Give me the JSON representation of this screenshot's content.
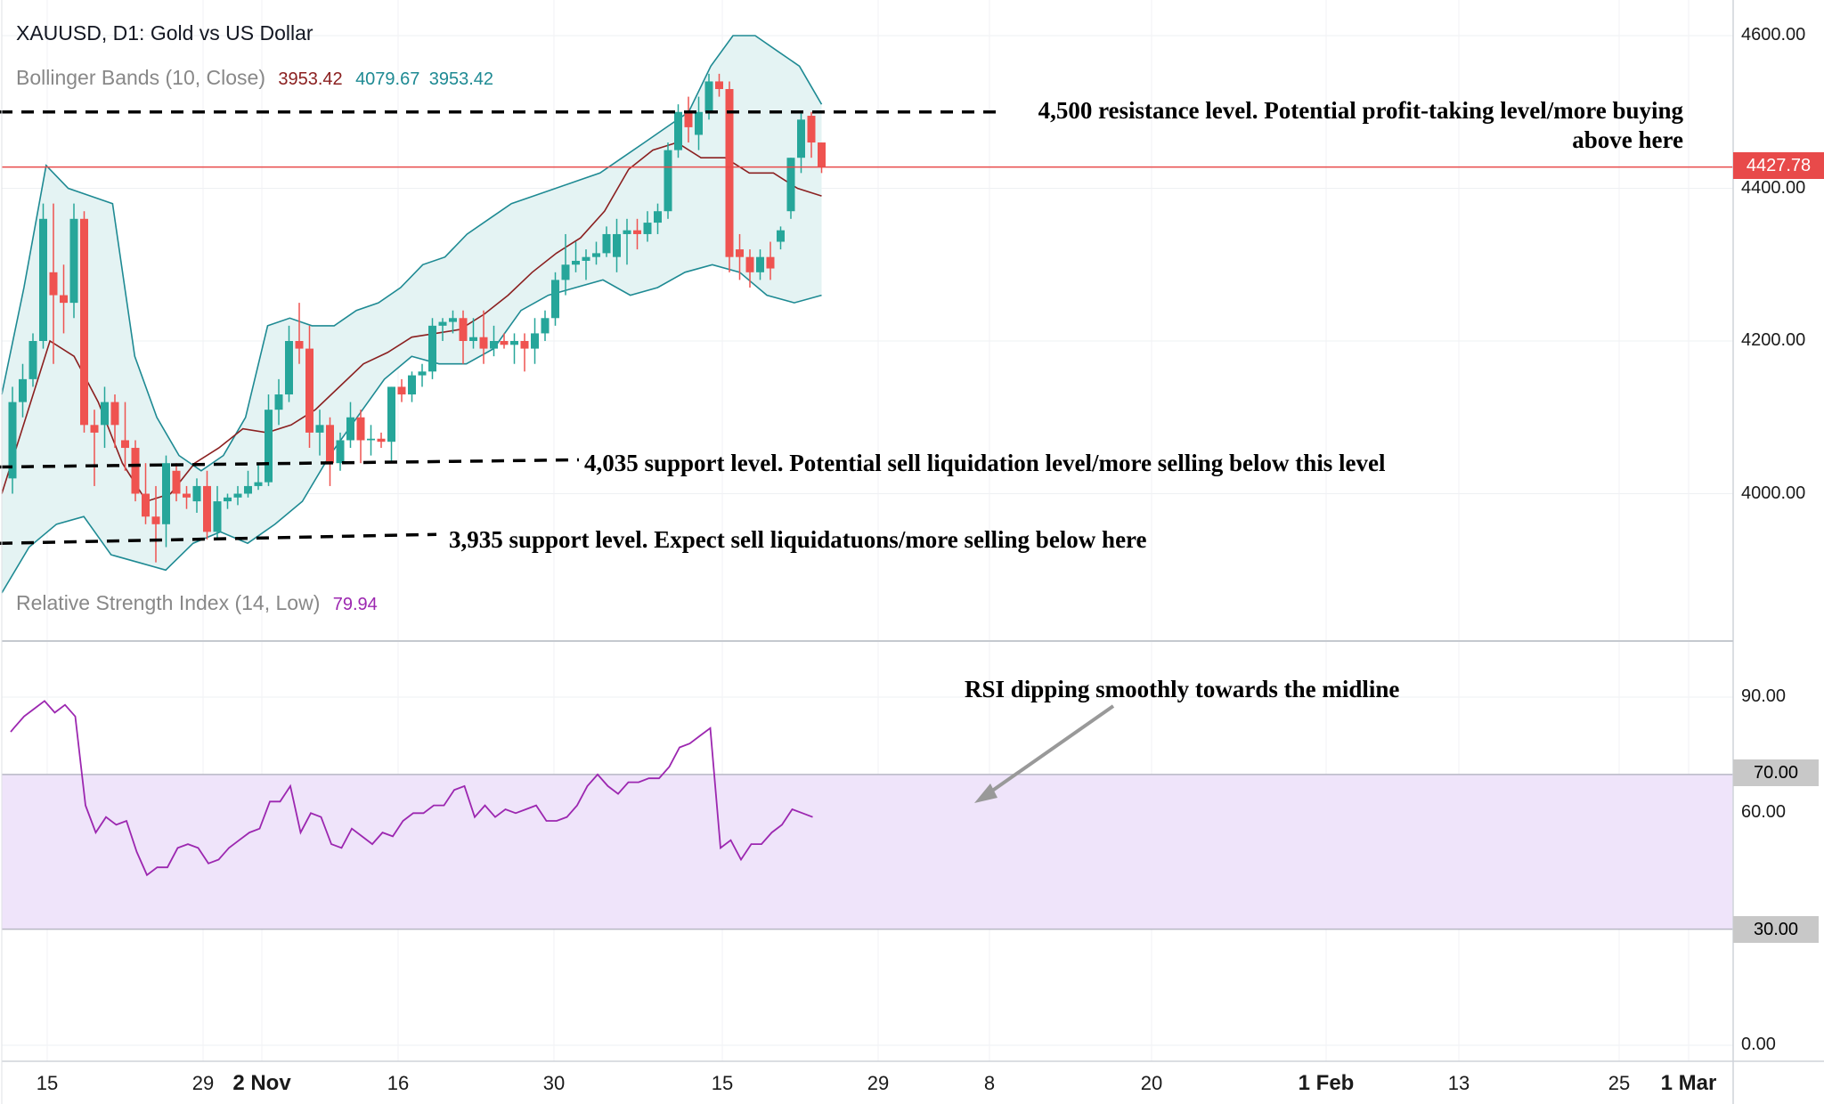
{
  "header": {
    "title": "XAUUSD, D1: Gold vs US Dollar",
    "bollinger_label": "Bollinger Bands (10, Close)",
    "bollinger_values": [
      "3953.42",
      "4079.67",
      "3953.42"
    ],
    "rsi_label": "Relative Strength Index (14, Low)",
    "rsi_value": "79.94"
  },
  "colors": {
    "bull": "#26a69a",
    "bear": "#ef5350",
    "band": "#1e8a93",
    "band_fill": "#e4f3f3",
    "mid": "#8b2020",
    "rsi": "#9c27b0",
    "rsi_zone": "#efe4fa",
    "price_line": "#e84a4a",
    "price_tag": "#e84a4a"
  },
  "current_price": "4427.78",
  "annotations": {
    "resistance": [
      "4,500 resistance level. Potential profit-taking level/more buying",
      "above here"
    ],
    "support_4035": "4,035 support level.  Potential sell liquidation level/more selling below this level",
    "support_3935": "3,935 support level. Expect sell liquidatuons/more selling below here",
    "rsi_note": "RSI dipping smoothly towards the midline"
  },
  "chart_data": [
    {
      "type": "candlestick",
      "title": "XAUUSD, D1: Gold vs US Dollar",
      "ylim": [
        3820,
        4640
      ],
      "y_ticks": [
        "4600.00",
        "4400.00",
        "4200.00",
        "4000.00"
      ],
      "y_tick_values": [
        4600,
        4400,
        4200,
        4000
      ],
      "x_tick_labels": [
        "15",
        "29",
        "2 Nov",
        "16",
        "30",
        "15",
        "29",
        "8",
        "20",
        "1 Feb",
        "13",
        "25",
        "1 Mar"
      ],
      "x_tick_bold": [
        false,
        false,
        true,
        false,
        false,
        false,
        false,
        false,
        false,
        true,
        false,
        false,
        true
      ],
      "levels": [
        {
          "name": "resistance",
          "value": 4500
        },
        {
          "name": "support",
          "value": 4035
        },
        {
          "name": "support",
          "value": 3935
        }
      ],
      "current_price": 4427.78,
      "candles": [
        {
          "o": 4020,
          "h": 4140,
          "l": 4000,
          "c": 4120
        },
        {
          "o": 4120,
          "h": 4170,
          "l": 4100,
          "c": 4150
        },
        {
          "o": 4150,
          "h": 4210,
          "l": 4140,
          "c": 4200
        },
        {
          "o": 4200,
          "h": 4380,
          "l": 4190,
          "c": 4360
        },
        {
          "o": 4290,
          "h": 4380,
          "l": 4170,
          "c": 4260
        },
        {
          "o": 4260,
          "h": 4300,
          "l": 4210,
          "c": 4250
        },
        {
          "o": 4250,
          "h": 4380,
          "l": 4230,
          "c": 4360
        },
        {
          "o": 4360,
          "h": 4370,
          "l": 4080,
          "c": 4090
        },
        {
          "o": 4090,
          "h": 4110,
          "l": 4010,
          "c": 4080
        },
        {
          "o": 4090,
          "h": 4140,
          "l": 4060,
          "c": 4120
        },
        {
          "o": 4120,
          "h": 4130,
          "l": 4060,
          "c": 4090
        },
        {
          "o": 4070,
          "h": 4120,
          "l": 4030,
          "c": 4060
        },
        {
          "o": 4060,
          "h": 4070,
          "l": 3990,
          "c": 4000
        },
        {
          "o": 4000,
          "h": 4040,
          "l": 3960,
          "c": 3970
        },
        {
          "o": 3970,
          "h": 4010,
          "l": 3910,
          "c": 3960
        },
        {
          "o": 3960,
          "h": 4050,
          "l": 3930,
          "c": 4040
        },
        {
          "o": 4030,
          "h": 4040,
          "l": 3990,
          "c": 4000
        },
        {
          "o": 4000,
          "h": 4010,
          "l": 3980,
          "c": 3995
        },
        {
          "o": 3990,
          "h": 4020,
          "l": 3975,
          "c": 4010
        },
        {
          "o": 4010,
          "h": 4030,
          "l": 3940,
          "c": 3950
        },
        {
          "o": 3950,
          "h": 4010,
          "l": 3940,
          "c": 3990
        },
        {
          "o": 3990,
          "h": 4000,
          "l": 3980,
          "c": 3995
        },
        {
          "o": 3995,
          "h": 4010,
          "l": 3985,
          "c": 4000
        },
        {
          "o": 4000,
          "h": 4030,
          "l": 3995,
          "c": 4010
        },
        {
          "o": 4010,
          "h": 4040,
          "l": 4005,
          "c": 4015
        },
        {
          "o": 4015,
          "h": 4130,
          "l": 4010,
          "c": 4110
        },
        {
          "o": 4110,
          "h": 4150,
          "l": 4090,
          "c": 4130
        },
        {
          "o": 4130,
          "h": 4220,
          "l": 4120,
          "c": 4200
        },
        {
          "o": 4200,
          "h": 4250,
          "l": 4170,
          "c": 4190
        },
        {
          "o": 4190,
          "h": 4220,
          "l": 4060,
          "c": 4080
        },
        {
          "o": 4080,
          "h": 4110,
          "l": 4050,
          "c": 4090
        },
        {
          "o": 4090,
          "h": 4100,
          "l": 4010,
          "c": 4040
        },
        {
          "o": 4040,
          "h": 4080,
          "l": 4030,
          "c": 4070
        },
        {
          "o": 4070,
          "h": 4120,
          "l": 4060,
          "c": 4100
        },
        {
          "o": 4100,
          "h": 4110,
          "l": 4040,
          "c": 4070
        },
        {
          "o": 4070,
          "h": 4090,
          "l": 4050,
          "c": 4072
        },
        {
          "o": 4072,
          "h": 4080,
          "l": 4060,
          "c": 4068
        },
        {
          "o": 4068,
          "h": 4140,
          "l": 4040,
          "c": 4140
        },
        {
          "o": 4140,
          "h": 4150,
          "l": 4120,
          "c": 4130
        },
        {
          "o": 4130,
          "h": 4160,
          "l": 4120,
          "c": 4155
        },
        {
          "o": 4155,
          "h": 4170,
          "l": 4140,
          "c": 4160
        },
        {
          "o": 4160,
          "h": 4230,
          "l": 4150,
          "c": 4220
        },
        {
          "o": 4220,
          "h": 4230,
          "l": 4200,
          "c": 4225
        },
        {
          "o": 4225,
          "h": 4240,
          "l": 4210,
          "c": 4230
        },
        {
          "o": 4230,
          "h": 4240,
          "l": 4170,
          "c": 4200
        },
        {
          "o": 4200,
          "h": 4230,
          "l": 4190,
          "c": 4205
        },
        {
          "o": 4205,
          "h": 4240,
          "l": 4170,
          "c": 4190
        },
        {
          "o": 4190,
          "h": 4220,
          "l": 4180,
          "c": 4200
        },
        {
          "o": 4200,
          "h": 4210,
          "l": 4190,
          "c": 4195
        },
        {
          "o": 4195,
          "h": 4210,
          "l": 4170,
          "c": 4200
        },
        {
          "o": 4200,
          "h": 4210,
          "l": 4160,
          "c": 4190
        },
        {
          "o": 4190,
          "h": 4230,
          "l": 4170,
          "c": 4210
        },
        {
          "o": 4210,
          "h": 4240,
          "l": 4200,
          "c": 4230
        },
        {
          "o": 4230,
          "h": 4290,
          "l": 4220,
          "c": 4280
        },
        {
          "o": 4280,
          "h": 4340,
          "l": 4260,
          "c": 4300
        },
        {
          "o": 4300,
          "h": 4330,
          "l": 4290,
          "c": 4305
        },
        {
          "o": 4305,
          "h": 4320,
          "l": 4280,
          "c": 4310
        },
        {
          "o": 4310,
          "h": 4330,
          "l": 4300,
          "c": 4315
        },
        {
          "o": 4315,
          "h": 4350,
          "l": 4310,
          "c": 4340
        },
        {
          "o": 4310,
          "h": 4360,
          "l": 4290,
          "c": 4340
        },
        {
          "o": 4340,
          "h": 4360,
          "l": 4300,
          "c": 4345
        },
        {
          "o": 4345,
          "h": 4360,
          "l": 4320,
          "c": 4340
        },
        {
          "o": 4340,
          "h": 4370,
          "l": 4330,
          "c": 4355
        },
        {
          "o": 4355,
          "h": 4380,
          "l": 4340,
          "c": 4370
        },
        {
          "o": 4370,
          "h": 4460,
          "l": 4360,
          "c": 4450
        },
        {
          "o": 4450,
          "h": 4510,
          "l": 4440,
          "c": 4500
        },
        {
          "o": 4500,
          "h": 4520,
          "l": 4460,
          "c": 4480
        },
        {
          "o": 4470,
          "h": 4520,
          "l": 4450,
          "c": 4500
        },
        {
          "o": 4500,
          "h": 4550,
          "l": 4490,
          "c": 4540
        },
        {
          "o": 4540,
          "h": 4550,
          "l": 4520,
          "c": 4530
        },
        {
          "o": 4530,
          "h": 4540,
          "l": 4290,
          "c": 4310
        },
        {
          "o": 4320,
          "h": 4340,
          "l": 4280,
          "c": 4310
        },
        {
          "o": 4310,
          "h": 4320,
          "l": 4270,
          "c": 4290
        },
        {
          "o": 4290,
          "h": 4320,
          "l": 4280,
          "c": 4310
        },
        {
          "o": 4310,
          "h": 4330,
          "l": 4280,
          "c": 4295
        },
        {
          "o": 4330,
          "h": 4350,
          "l": 4320,
          "c": 4345
        },
        {
          "o": 4370,
          "h": 4440,
          "l": 4360,
          "c": 4440
        },
        {
          "o": 4440,
          "h": 4500,
          "l": 4420,
          "c": 4490
        },
        {
          "o": 4495,
          "h": 4500,
          "l": 4440,
          "c": 4460
        },
        {
          "o": 4460,
          "h": 4460,
          "l": 4420,
          "c": 4428
        }
      ],
      "bb_upper": [
        4130,
        4270,
        4430,
        4400,
        4390,
        4380,
        4180,
        4100,
        4050,
        4030,
        4050,
        4100,
        4220,
        4230,
        4220,
        4220,
        4240,
        4250,
        4270,
        4300,
        4310,
        4340,
        4360,
        4380,
        4390,
        4400,
        4410,
        4420,
        4440,
        4460,
        4480,
        4500,
        4560,
        4600,
        4600,
        4580,
        4560,
        4510
      ],
      "bb_mid": [
        4000,
        4100,
        4200,
        4180,
        4120,
        4040,
        3990,
        4000,
        4040,
        4060,
        4085,
        4080,
        4090,
        4110,
        4140,
        4170,
        4185,
        4205,
        4210,
        4215,
        4235,
        4260,
        4290,
        4315,
        4335,
        4370,
        4425,
        4450,
        4460,
        4440,
        4440,
        4420,
        4420,
        4400,
        4390
      ],
      "bb_lower": [
        3870,
        3930,
        3960,
        3970,
        3920,
        3910,
        3900,
        3935,
        3950,
        3935,
        3960,
        3990,
        4050,
        4100,
        4150,
        4180,
        4170,
        4170,
        4190,
        4240,
        4260,
        4270,
        4280,
        4260,
        4270,
        4290,
        4300,
        4290,
        4260,
        4250,
        4260
      ],
      "band_label_series": [
        "upper",
        "basis",
        "lower"
      ]
    },
    {
      "type": "line",
      "title": "Relative Strength Index (14, Low)",
      "ylim": [
        -5,
        100
      ],
      "y_ticks": [
        "90.00",
        "60.00",
        "0.00"
      ],
      "y_tick_values": [
        90,
        60,
        0
      ],
      "zone": [
        30,
        70
      ],
      "zone_labels": [
        "70.00",
        "30.00"
      ],
      "values": [
        81,
        82,
        85,
        87,
        89,
        86,
        88,
        85,
        62,
        55,
        59,
        57,
        58,
        50,
        44,
        46,
        46,
        51,
        52,
        51,
        47,
        48,
        51,
        53,
        55,
        56,
        63,
        63,
        67,
        55,
        60,
        59,
        52,
        51,
        56,
        54,
        52,
        55,
        54,
        58,
        60,
        60,
        62,
        62,
        66,
        67,
        59,
        62,
        59,
        61,
        60,
        61,
        62,
        58,
        58,
        59,
        62,
        67,
        70,
        67,
        65,
        68,
        68,
        69,
        69,
        72,
        77,
        78,
        80,
        82,
        51,
        53,
        48,
        52,
        52,
        55,
        57,
        61,
        60,
        59
      ],
      "annotation": "RSI dipping smoothly towards the midline"
    }
  ]
}
